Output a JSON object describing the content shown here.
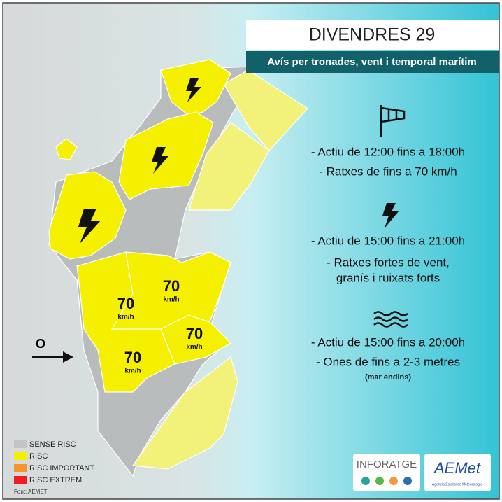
{
  "header": {
    "title": "DIVENDRES 29",
    "subtitle": "Avís per tronades, vent i temporal marítim"
  },
  "map": {
    "direction_label": "O",
    "wind_labels": [
      {
        "value": 70,
        "unit": "km/h"
      },
      {
        "value": 70,
        "unit": "km/h"
      },
      {
        "value": 70,
        "unit": "km/h"
      },
      {
        "value": 70,
        "unit": "km/h"
      }
    ]
  },
  "warnings": [
    {
      "lines": [
        "- Actiu de 12:00 fins a 18:00h",
        "- Ratxes de fins a 70 km/h"
      ]
    },
    {
      "lines": [
        "- Actiu de 15:00 fins a 21:00h",
        "- Ratxes fortes de vent,",
        "granís i ruixats forts"
      ]
    },
    {
      "lines": [
        "- Actiu de 15:00 fins a 20:00h",
        "- Ones de fins a 2-3 metres"
      ],
      "note": "(mar endins)"
    }
  ],
  "legend": [
    "SENSE RISC",
    "RISC",
    "RISC IMPORTANT",
    "RISC EXTREM"
  ],
  "source": "Font: AEMET",
  "logos": {
    "inforatge": "INFORATGE",
    "aemet": "AEMet",
    "aemet_sub": "Agencia Estatal de Meteorología"
  }
}
